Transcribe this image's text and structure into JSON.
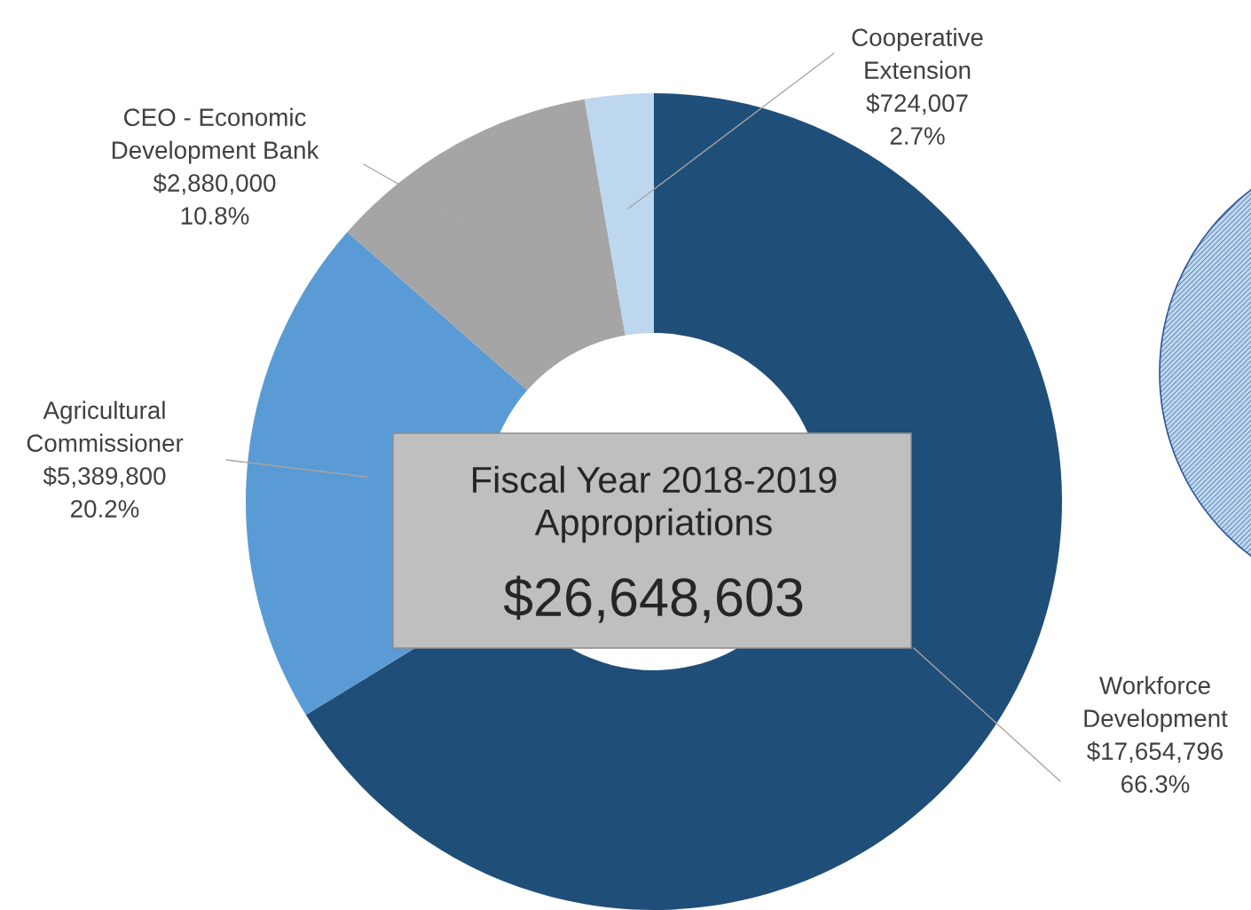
{
  "chart_data": {
    "type": "donut",
    "categories": [
      "Workforce\nDevelopment",
      "Agricultural\nCommissioner",
      "CEO - Economic\nDevelopment Bank",
      "Cooperative\nExtension"
    ],
    "values": [
      17654796,
      5389800,
      2880000,
      724007
    ],
    "colors": [
      "#1f4e79",
      "#5b9bd5",
      "#a5a5a5",
      "#bdd7ee"
    ],
    "value_labels": [
      "$17,654,796\n66.3%",
      "$5,389,800\n20.2%",
      "$2,880,000\n10.8%",
      "$724,007\n2.7%"
    ],
    "annotations": [
      "Fiscal Year 2018-2019\nAppropriations",
      "$26,648,603"
    ],
    "legend": false
  }
}
